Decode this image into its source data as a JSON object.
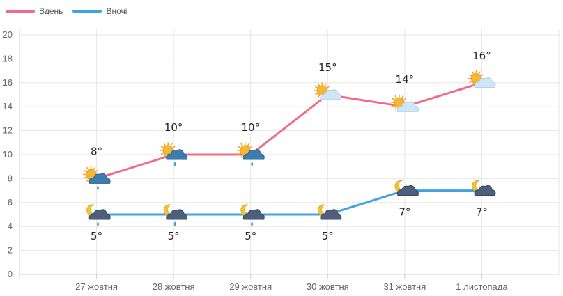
{
  "legend": {
    "day_label": "Вдень",
    "night_label": "Вночі"
  },
  "colors": {
    "day": "#f06b86",
    "night": "#3fa3e0",
    "grid": "#e6e6e6",
    "axis": "#d0d0d0"
  },
  "chart_data": {
    "type": "line",
    "categories": [
      "27 жовтня",
      "28 жовтня",
      "29 жовтня",
      "30 жовтня",
      "31 жовтня",
      "1 листопада"
    ],
    "series": [
      {
        "name": "Вдень",
        "values": [
          8,
          10,
          10,
          15,
          14,
          16
        ],
        "labels": [
          "8°",
          "10°",
          "10°",
          "15°",
          "14°",
          "16°"
        ],
        "icons": [
          "sun-cloud-rain-icon",
          "sun-cloud-rain-icon",
          "sun-cloud-rain-icon",
          "sun-cloud-icon",
          "sun-cloud-icon",
          "sun-cloud-icon"
        ]
      },
      {
        "name": "Вночі",
        "values": [
          5,
          5,
          5,
          5,
          7,
          7
        ],
        "labels": [
          "5°",
          "5°",
          "5°",
          "5°",
          "7°",
          "7°"
        ],
        "icons": [
          "moon-cloud-rain-icon",
          "moon-cloud-rain-icon",
          "moon-cloud-rain-icon",
          "moon-cloud-icon",
          "moon-cloud-icon",
          "moon-cloud-icon"
        ]
      }
    ],
    "y_ticks": [
      "0",
      "2",
      "4",
      "6",
      "8",
      "10",
      "12",
      "14",
      "16",
      "18",
      "20"
    ],
    "ylim": [
      0,
      20
    ],
    "grid": true,
    "legend_position": "top-left"
  }
}
